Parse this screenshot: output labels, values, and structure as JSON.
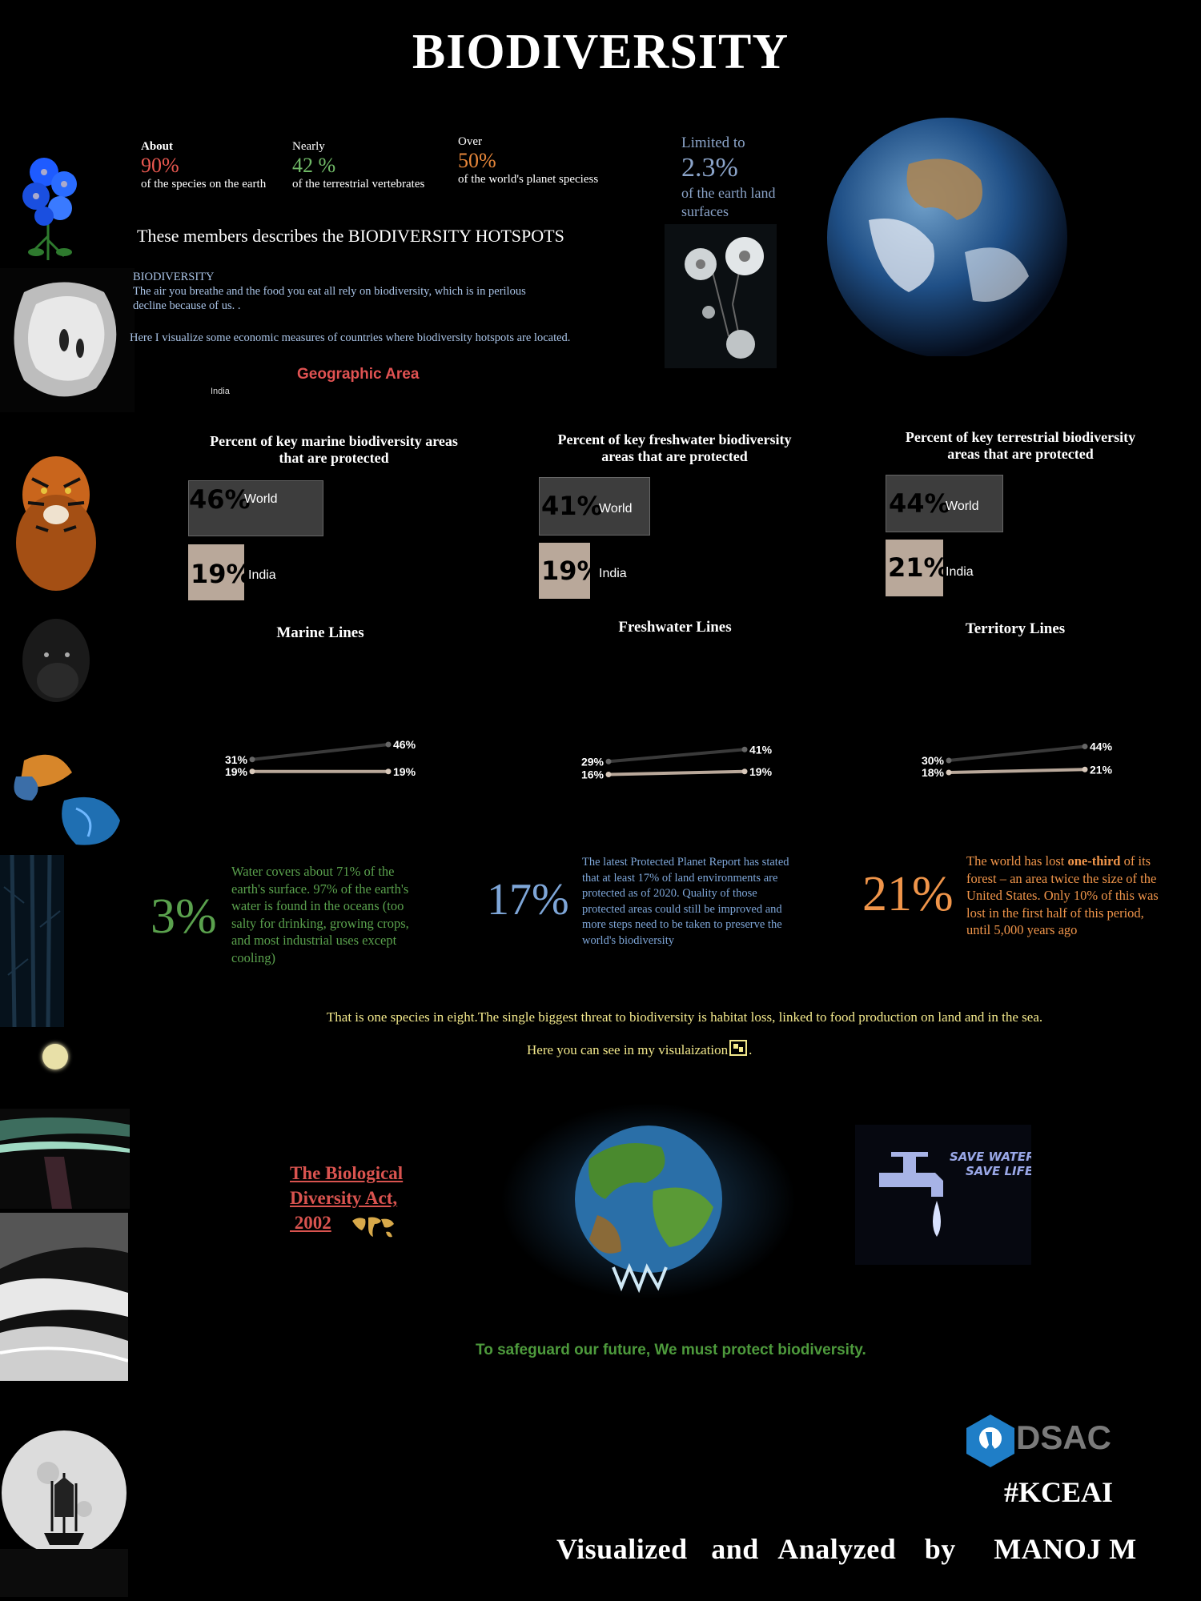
{
  "title": "BIODIVERSITY",
  "stats": [
    {
      "pre": "About",
      "value": "90%",
      "post": "of the species on the earth",
      "color": "#e8574f"
    },
    {
      "pre": "Nearly",
      "value": "42 %",
      "post": "of the terrestrial vertebrates",
      "color": "#6fb866"
    },
    {
      "pre": "Over",
      "value": "50%",
      "post": "of the world's planet speciess",
      "color": "#e8873a"
    }
  ],
  "limited": {
    "pre": "Limited to",
    "value": "2.3%",
    "post1": "of the earth land",
    "post2": "surfaces",
    "color": "#8ba4c9"
  },
  "hotspots_heading": "These members describes the BIODIVERSITY HOTSPOTS",
  "intro": {
    "label": "BIODIVERSITY",
    "line1": "The air you breathe and the food you eat all rely on biodiversity, which is in perilous",
    "line2": "decline because of us. .",
    "line3": "Here I visualize some economic measures of countries where biodiversity hotspots are located.",
    "color": "#a9c3e6"
  },
  "geo": {
    "title": "Geographic Area",
    "country": "India",
    "color": "#e05252"
  },
  "bar_charts": [
    {
      "title1": "Percent of key marine biodiversity areas",
      "title2": "that are protected",
      "world_pct": "46%",
      "world_label": "World",
      "india_pct": "19%",
      "india_label": "India"
    },
    {
      "title1": "Percent of key freshwater biodiversity",
      "title2": "areas that are protected",
      "world_pct": "41%",
      "world_label": "World",
      "india_pct": "19%",
      "india_label": "India"
    },
    {
      "title1": "Percent of key terrestrial biodiversity",
      "title2": "areas that are protected",
      "world_pct": "44%",
      "world_label": "World",
      "india_pct": "21%",
      "india_label": "India"
    }
  ],
  "line_titles": [
    "Marine Lines",
    "Freshwater Lines",
    "Territory Lines"
  ],
  "chart_data": [
    {
      "type": "line",
      "title": "Marine Lines",
      "series": [
        {
          "values": [
            31,
            46
          ]
        },
        {
          "values": [
            19,
            19
          ]
        }
      ],
      "labels": [
        [
          "31%",
          "46%"
        ],
        [
          "19%",
          "19%"
        ]
      ]
    },
    {
      "type": "line",
      "title": "Freshwater Lines",
      "series": [
        {
          "values": [
            29,
            41
          ]
        },
        {
          "values": [
            16,
            19
          ]
        }
      ],
      "labels": [
        [
          "29%",
          "41%"
        ],
        [
          "16%",
          "19%"
        ]
      ]
    },
    {
      "type": "line",
      "title": "Territory Lines",
      "series": [
        {
          "values": [
            30,
            44
          ]
        },
        {
          "values": [
            18,
            21
          ]
        }
      ],
      "labels": [
        [
          "30%",
          "44%"
        ],
        [
          "18%",
          "21%"
        ]
      ]
    }
  ],
  "facts": [
    {
      "big": "3%",
      "color": "#5aa14d",
      "lines": [
        "Water covers about 71% of the",
        "earth's surface. 97% of the earth's",
        "water is found in the oceans   (too",
        "salty for drinking, growing crops,",
        "and most industrial uses except",
        "cooling)"
      ]
    },
    {
      "big": "17%",
      "color": "#7ea6d8",
      "lines": [
        "The latest Protected Planet Report has stated",
        "that at least 17% of land environments are",
        "protected as of 2020. Quality of those",
        "protected areas could still be improved and",
        "more steps need to be taken to preserve the",
        "world's biodiversity"
      ]
    },
    {
      "big": "21%",
      "color": "#f0954a",
      "l1a": "The world has lost ",
      "l1b": "one-third",
      "l1c": " of its",
      "lines": [
        "forest – an area twice the size of the",
        "United States. Only 10% of this was",
        "lost in the first half of this period,",
        "until 5,000 years ago"
      ]
    }
  ],
  "threat_line": "That is one species in eight.The single biggest threat to biodiversity is habitat loss, linked to food production on land and in the sea.",
  "see_line": "Here you can see in my visulaization",
  "see_end": ".",
  "act": {
    "line1": "The Biological",
    "line2": "Diversity Act,",
    "line3": " 2002"
  },
  "save_water": {
    "l1": "SAVE WATER",
    "l2": "SAVE LIFE"
  },
  "safeguard": "To safeguard our future, We must protect biodiversity.",
  "dsac": "DSAC",
  "hashtag": "#KCEAI",
  "credit": {
    "w1": "Visualized",
    "w2": "and",
    "w3": "Analyzed",
    "w4": "by",
    "w5": "MANOJ M"
  },
  "colors": {
    "yellow_text": "#f3e98c",
    "safeguard": "#4d9a3c",
    "bar_world": "#3d3d3d",
    "bar_india": "#b9a89a"
  }
}
